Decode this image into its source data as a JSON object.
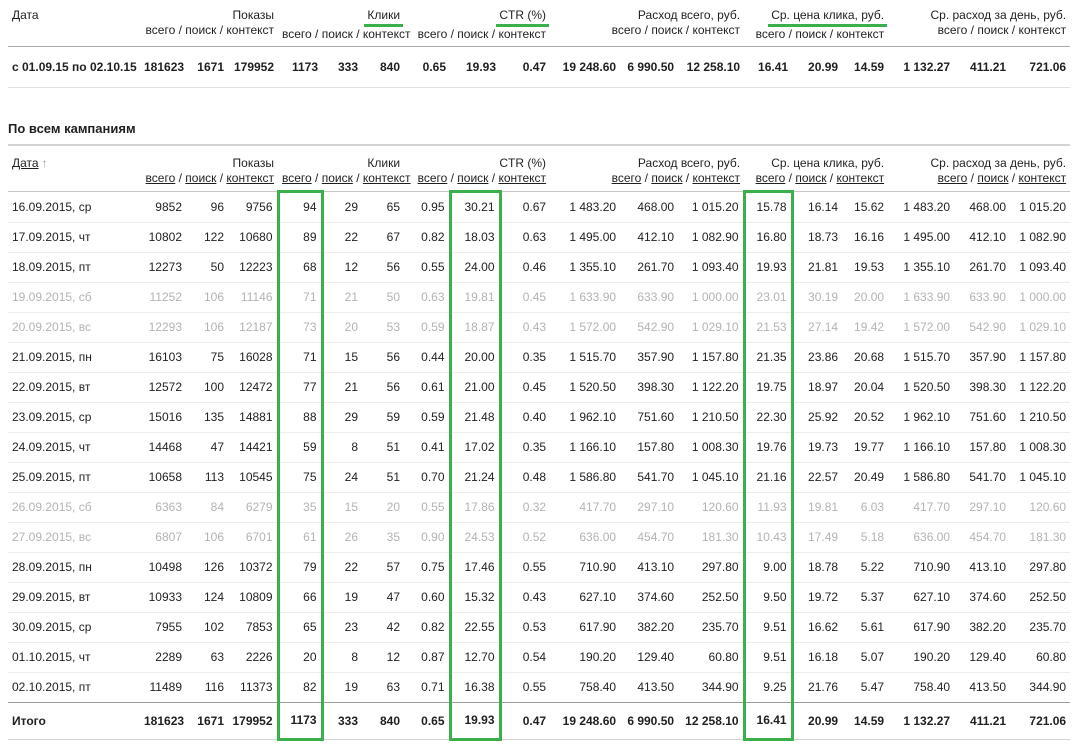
{
  "colors": {
    "highlight_green": "#3aaf4b"
  },
  "section": {
    "title": "По всем кампаниям"
  },
  "column_keys": [
    "date",
    "shows-total",
    "shows-search",
    "shows-context",
    "clicks-total",
    "clicks-search",
    "clicks-context",
    "ctr-total",
    "ctr-search",
    "ctr-context",
    "cost-total",
    "cost-search",
    "cost-context",
    "cpc-total",
    "cpc-search",
    "cpc-context",
    "daily-total",
    "daily-search",
    "daily-context"
  ],
  "summary_table": {
    "date_header": {
      "label": "Дата",
      "link": false
    },
    "groups": [
      {
        "label": "Показы",
        "sub": [
          "всего",
          "поиск",
          "контекст"
        ],
        "sub_links": false,
        "highlight": false
      },
      {
        "label": "Клики",
        "sub": [
          "всего",
          "поиск",
          "контекст"
        ],
        "sub_links": false,
        "highlight": true
      },
      {
        "label": "CTR (%)",
        "sub": [
          "всего",
          "поиск",
          "контекст"
        ],
        "sub_links": false,
        "highlight": true
      },
      {
        "label": "Расход всего, руб.",
        "sub": [
          "всего",
          "поиск",
          "контекст"
        ],
        "sub_links": false,
        "highlight": false
      },
      {
        "label": "Ср. цена клика, руб.",
        "sub": [
          "всего",
          "поиск",
          "контекст"
        ],
        "sub_links": false,
        "highlight": true
      },
      {
        "label": "Ср. расход за день, руб.",
        "sub": [
          "всего",
          "поиск",
          "контекст"
        ],
        "sub_links": false,
        "highlight": false
      }
    ],
    "rows": [
      {
        "cells": [
          "с 01.09.15 по 02.10.15",
          "181623",
          "1671",
          "179952",
          "1173",
          "333",
          "840",
          "0.65",
          "19.93",
          "0.47",
          "19 248.60",
          "6 990.50",
          "12 258.10",
          "16.41",
          "20.99",
          "14.59",
          "1 132.27",
          "411.21",
          "721.06"
        ],
        "muted": false
      }
    ]
  },
  "campaigns_table": {
    "date_header": {
      "label": "Дата",
      "link": true,
      "sort_arrow": "↑"
    },
    "groups": [
      {
        "label": "Показы",
        "sub": [
          "всего",
          "поиск",
          "контекст"
        ],
        "sub_links": true,
        "highlight": false
      },
      {
        "label": "Клики",
        "sub": [
          "всего",
          "поиск",
          "контекст"
        ],
        "sub_links": true,
        "highlight": false
      },
      {
        "label": "CTR (%)",
        "sub": [
          "всего",
          "поиск",
          "контекст"
        ],
        "sub_links": true,
        "highlight": false
      },
      {
        "label": "Расход всего, руб.",
        "sub": [
          "всего",
          "поиск",
          "контекст"
        ],
        "sub_links": true,
        "highlight": false
      },
      {
        "label": "Ср. цена клика, руб.",
        "sub": [
          "всего",
          "поиск",
          "контекст"
        ],
        "sub_links": true,
        "highlight": false
      },
      {
        "label": "Ср. расход за день, руб.",
        "sub": [
          "всего",
          "поиск",
          "контекст"
        ],
        "sub_links": true,
        "highlight": false
      }
    ],
    "highlight_columns": [
      4,
      8,
      13
    ],
    "rows": [
      {
        "cells": [
          "16.09.2015, ср",
          "9852",
          "96",
          "9756",
          "94",
          "29",
          "65",
          "0.95",
          "30.21",
          "0.67",
          "1 483.20",
          "468.00",
          "1 015.20",
          "15.78",
          "16.14",
          "15.62",
          "1 483.20",
          "468.00",
          "1 015.20"
        ],
        "muted": false
      },
      {
        "cells": [
          "17.09.2015, чт",
          "10802",
          "122",
          "10680",
          "89",
          "22",
          "67",
          "0.82",
          "18.03",
          "0.63",
          "1 495.00",
          "412.10",
          "1 082.90",
          "16.80",
          "18.73",
          "16.16",
          "1 495.00",
          "412.10",
          "1 082.90"
        ],
        "muted": false
      },
      {
        "cells": [
          "18.09.2015, пт",
          "12273",
          "50",
          "12223",
          "68",
          "12",
          "56",
          "0.55",
          "24.00",
          "0.46",
          "1 355.10",
          "261.70",
          "1 093.40",
          "19.93",
          "21.81",
          "19.53",
          "1 355.10",
          "261.70",
          "1 093.40"
        ],
        "muted": false
      },
      {
        "cells": [
          "19.09.2015, сб",
          "11252",
          "106",
          "11146",
          "71",
          "21",
          "50",
          "0.63",
          "19.81",
          "0.45",
          "1 633.90",
          "633.90",
          "1 000.00",
          "23.01",
          "30.19",
          "20.00",
          "1 633.90",
          "633.90",
          "1 000.00"
        ],
        "muted": true
      },
      {
        "cells": [
          "20.09.2015, вс",
          "12293",
          "106",
          "12187",
          "73",
          "20",
          "53",
          "0.59",
          "18.87",
          "0.43",
          "1 572.00",
          "542.90",
          "1 029.10",
          "21.53",
          "27.14",
          "19.42",
          "1 572.00",
          "542.90",
          "1 029.10"
        ],
        "muted": true
      },
      {
        "cells": [
          "21.09.2015, пн",
          "16103",
          "75",
          "16028",
          "71",
          "15",
          "56",
          "0.44",
          "20.00",
          "0.35",
          "1 515.70",
          "357.90",
          "1 157.80",
          "21.35",
          "23.86",
          "20.68",
          "1 515.70",
          "357.90",
          "1 157.80"
        ],
        "muted": false
      },
      {
        "cells": [
          "22.09.2015, вт",
          "12572",
          "100",
          "12472",
          "77",
          "21",
          "56",
          "0.61",
          "21.00",
          "0.45",
          "1 520.50",
          "398.30",
          "1 122.20",
          "19.75",
          "18.97",
          "20.04",
          "1 520.50",
          "398.30",
          "1 122.20"
        ],
        "muted": false
      },
      {
        "cells": [
          "23.09.2015, ср",
          "15016",
          "135",
          "14881",
          "88",
          "29",
          "59",
          "0.59",
          "21.48",
          "0.40",
          "1 962.10",
          "751.60",
          "1 210.50",
          "22.30",
          "25.92",
          "20.52",
          "1 962.10",
          "751.60",
          "1 210.50"
        ],
        "muted": false
      },
      {
        "cells": [
          "24.09.2015, чт",
          "14468",
          "47",
          "14421",
          "59",
          "8",
          "51",
          "0.41",
          "17.02",
          "0.35",
          "1 166.10",
          "157.80",
          "1 008.30",
          "19.76",
          "19.73",
          "19.77",
          "1 166.10",
          "157.80",
          "1 008.30"
        ],
        "muted": false
      },
      {
        "cells": [
          "25.09.2015, пт",
          "10658",
          "113",
          "10545",
          "75",
          "24",
          "51",
          "0.70",
          "21.24",
          "0.48",
          "1 586.80",
          "541.70",
          "1 045.10",
          "21.16",
          "22.57",
          "20.49",
          "1 586.80",
          "541.70",
          "1 045.10"
        ],
        "muted": false
      },
      {
        "cells": [
          "26.09.2015, сб",
          "6363",
          "84",
          "6279",
          "35",
          "15",
          "20",
          "0.55",
          "17.86",
          "0.32",
          "417.70",
          "297.10",
          "120.60",
          "11.93",
          "19.81",
          "6.03",
          "417.70",
          "297.10",
          "120.60"
        ],
        "muted": true
      },
      {
        "cells": [
          "27.09.2015, вс",
          "6807",
          "106",
          "6701",
          "61",
          "26",
          "35",
          "0.90",
          "24.53",
          "0.52",
          "636.00",
          "454.70",
          "181.30",
          "10.43",
          "17.49",
          "5.18",
          "636.00",
          "454.70",
          "181.30"
        ],
        "muted": true
      },
      {
        "cells": [
          "28.09.2015, пн",
          "10498",
          "126",
          "10372",
          "79",
          "22",
          "57",
          "0.75",
          "17.46",
          "0.55",
          "710.90",
          "413.10",
          "297.80",
          "9.00",
          "18.78",
          "5.22",
          "710.90",
          "413.10",
          "297.80"
        ],
        "muted": false
      },
      {
        "cells": [
          "29.09.2015, вт",
          "10933",
          "124",
          "10809",
          "66",
          "19",
          "47",
          "0.60",
          "15.32",
          "0.43",
          "627.10",
          "374.60",
          "252.50",
          "9.50",
          "19.72",
          "5.37",
          "627.10",
          "374.60",
          "252.50"
        ],
        "muted": false
      },
      {
        "cells": [
          "30.09.2015, ср",
          "7955",
          "102",
          "7853",
          "65",
          "23",
          "42",
          "0.82",
          "22.55",
          "0.53",
          "617.90",
          "382.20",
          "235.70",
          "9.51",
          "16.62",
          "5.61",
          "617.90",
          "382.20",
          "235.70"
        ],
        "muted": false
      },
      {
        "cells": [
          "01.10.2015, чт",
          "2289",
          "63",
          "2226",
          "20",
          "8",
          "12",
          "0.87",
          "12.70",
          "0.54",
          "190.20",
          "129.40",
          "60.80",
          "9.51",
          "16.18",
          "5.07",
          "190.20",
          "129.40",
          "60.80"
        ],
        "muted": false
      },
      {
        "cells": [
          "02.10.2015, пт",
          "11489",
          "116",
          "11373",
          "82",
          "19",
          "63",
          "0.71",
          "16.38",
          "0.55",
          "758.40",
          "413.50",
          "344.90",
          "9.25",
          "21.76",
          "5.47",
          "758.40",
          "413.50",
          "344.90"
        ],
        "muted": false
      }
    ],
    "total_row": {
      "cells": [
        "Итого",
        "181623",
        "1671",
        "179952",
        "1173",
        "333",
        "840",
        "0.65",
        "19.93",
        "0.47",
        "19 248.60",
        "6 990.50",
        "12 258.10",
        "16.41",
        "20.99",
        "14.59",
        "1 132.27",
        "411.21",
        "721.06"
      ]
    }
  }
}
